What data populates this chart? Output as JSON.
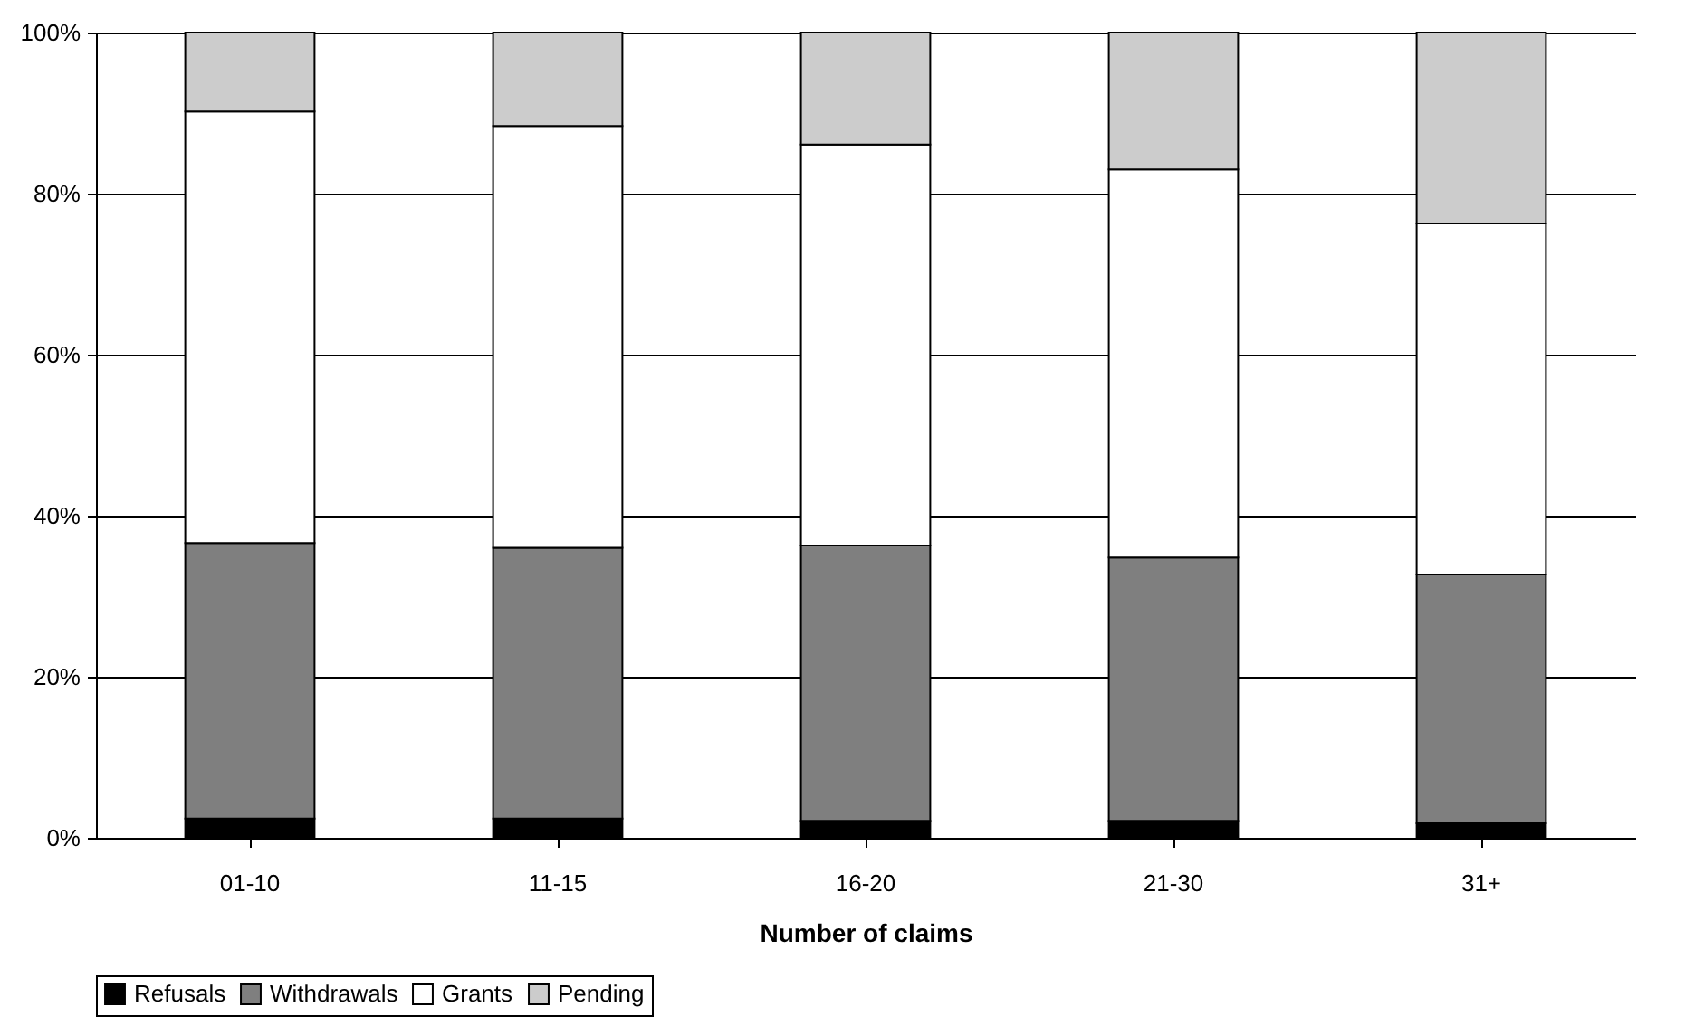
{
  "chart_data": {
    "type": "bar",
    "stacked": true,
    "xlabel": "Number of claims",
    "categories": [
      "01-10",
      "11-15",
      "16-20",
      "21-30",
      "31+"
    ],
    "series": [
      {
        "name": "Refusals",
        "color": "#000000",
        "values": [
          2.4,
          2.4,
          2.1,
          2.1,
          1.8
        ]
      },
      {
        "name": "Withdrawals",
        "color": "#7f7f7f",
        "values": [
          34.2,
          33.6,
          34.2,
          32.7,
          30.9
        ]
      },
      {
        "name": "Grants",
        "color": "#ffffff",
        "values": [
          53.6,
          52.4,
          49.8,
          48.2,
          43.6
        ]
      },
      {
        "name": "Pending",
        "color": "#cccccc",
        "values": [
          9.8,
          11.6,
          13.9,
          17.0,
          23.7
        ]
      }
    ],
    "ylim": [
      0,
      100
    ],
    "yticks": [
      {
        "value": 0,
        "label": "0%"
      },
      {
        "value": 20,
        "label": "20%"
      },
      {
        "value": 40,
        "label": "40%"
      },
      {
        "value": 60,
        "label": "60%"
      },
      {
        "value": 80,
        "label": "80%"
      },
      {
        "value": 100,
        "label": "100%"
      }
    ],
    "grid": "y",
    "legend": "bottom"
  }
}
